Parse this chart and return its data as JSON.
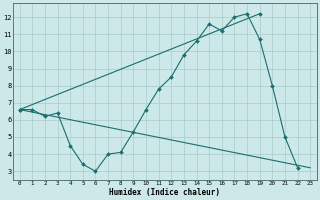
{
  "xlabel": "Humidex (Indice chaleur)",
  "bg_color": "#cce8e8",
  "grid_color": "#aacccc",
  "line_color": "#1a6e6e",
  "xlim": [
    -0.5,
    23.5
  ],
  "ylim": [
    2.5,
    12.8
  ],
  "xticks": [
    0,
    1,
    2,
    3,
    4,
    5,
    6,
    7,
    8,
    9,
    10,
    11,
    12,
    13,
    14,
    15,
    16,
    17,
    18,
    19,
    20,
    21,
    22,
    23
  ],
  "yticks": [
    3,
    4,
    5,
    6,
    7,
    8,
    9,
    10,
    11,
    12
  ],
  "series1_x": [
    0,
    1,
    2,
    3,
    4,
    5,
    6,
    7,
    8,
    9,
    10,
    11,
    12,
    13,
    14,
    15,
    16,
    17,
    18,
    19,
    20,
    21,
    22
  ],
  "series1_y": [
    6.6,
    6.6,
    6.2,
    6.4,
    4.5,
    3.4,
    3.0,
    4.0,
    4.1,
    5.3,
    6.6,
    7.8,
    8.5,
    9.8,
    10.6,
    11.6,
    11.2,
    12.0,
    12.2,
    10.7,
    8.0,
    5.0,
    3.2
  ],
  "series2_x": [
    0,
    23
  ],
  "series2_y": [
    6.6,
    3.2
  ],
  "series3_x": [
    0,
    19
  ],
  "series3_y": [
    6.6,
    12.2
  ]
}
